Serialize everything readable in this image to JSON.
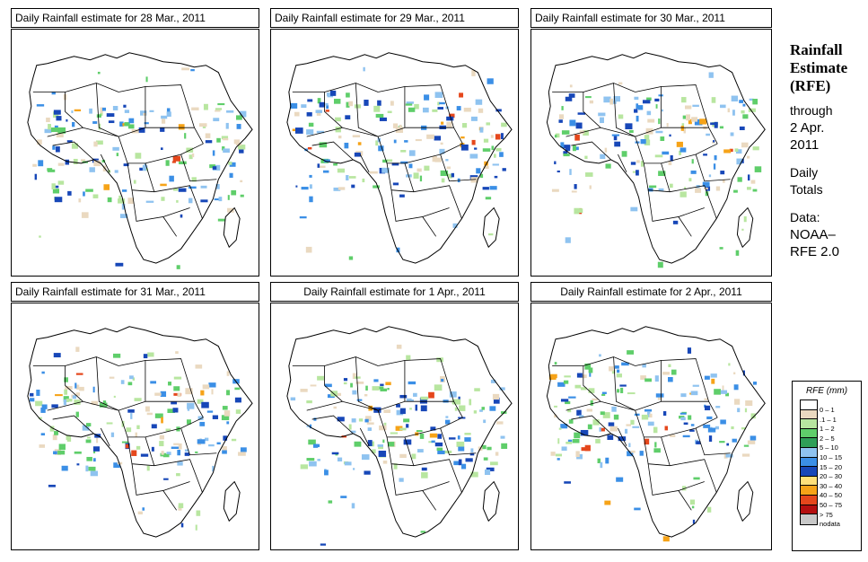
{
  "panels": [
    {
      "title": "Daily Rainfall estimate for  28 Mar., 2011"
    },
    {
      "title": "Daily Rainfall estimate for  29 Mar., 2011"
    },
    {
      "title": "Daily Rainfall estimate for  30 Mar., 2011"
    },
    {
      "title": "Daily Rainfall estimate for  31 Mar., 2011"
    },
    {
      "title": "Daily Rainfall estimate for  1 Apr., 2011"
    },
    {
      "title": "Daily Rainfall estimate for  2 Apr., 2011"
    }
  ],
  "sidebar": {
    "heading1": "Rainfall",
    "heading2": "Estimate",
    "heading3": "(RFE)",
    "through": "through",
    "date1": "2 Apr.",
    "date2": "2011",
    "daily": "Daily",
    "totals": "Totals",
    "data": "Data:",
    "source1": "NOAA–",
    "source2": "RFE 2.0"
  },
  "legend": {
    "title": "RFE (mm)",
    "items": [
      {
        "label": "0 – 1",
        "color": "#ffffff"
      },
      {
        "label": ".1 – 1",
        "color": "#ead9c0"
      },
      {
        "label": "1 – 2",
        "color": "#b8e6a0"
      },
      {
        "label": "2 – 5",
        "color": "#5fce6a"
      },
      {
        "label": "5 – 10",
        "color": "#2f9f58"
      },
      {
        "label": "10 – 15",
        "color": "#8fc3f0"
      },
      {
        "label": "15 – 20",
        "color": "#3b8fe6"
      },
      {
        "label": "20 – 30",
        "color": "#1747b8"
      },
      {
        "label": "30 – 40",
        "color": "#ffe07a"
      },
      {
        "label": "40 – 50",
        "color": "#f6a318"
      },
      {
        "label": "50 – 75",
        "color": "#e5471c"
      },
      {
        "label": "> 75",
        "color": "#b40f10"
      },
      {
        "label": "nodata",
        "color": "#c8c8c8"
      }
    ]
  }
}
